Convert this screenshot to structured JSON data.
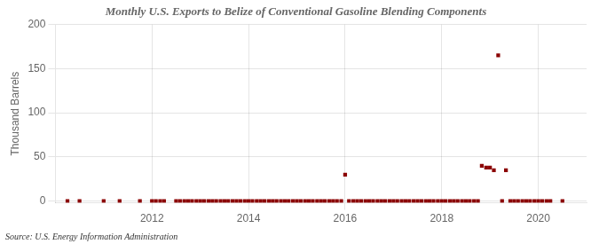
{
  "chart_data": {
    "type": "scatter",
    "title": "Monthly U.S. Exports to Belize of Conventional Gasoline Blending Components",
    "ylabel": "Thousand Barrels",
    "annotations": [
      "Source: U.S. Energy Information Administration"
    ],
    "x": [
      2010.25,
      2010.5,
      2011.0,
      2011.33,
      2011.75,
      2012.0,
      2012.08,
      2012.17,
      2012.25,
      2012.5,
      2012.58,
      2012.67,
      2012.75,
      2012.83,
      2012.92,
      2013.0,
      2013.08,
      2013.17,
      2013.25,
      2013.33,
      2013.42,
      2013.5,
      2013.58,
      2013.67,
      2013.75,
      2013.83,
      2013.92,
      2014.0,
      2014.08,
      2014.17,
      2014.25,
      2014.33,
      2014.42,
      2014.5,
      2014.58,
      2014.67,
      2014.75,
      2014.83,
      2014.92,
      2015.0,
      2015.08,
      2015.17,
      2015.25,
      2015.33,
      2015.42,
      2015.5,
      2015.58,
      2015.67,
      2015.75,
      2015.83,
      2015.92,
      2016.0,
      2016.08,
      2016.17,
      2016.25,
      2016.33,
      2016.42,
      2016.5,
      2016.58,
      2016.67,
      2016.75,
      2016.83,
      2016.92,
      2017.0,
      2017.08,
      2017.17,
      2017.25,
      2017.33,
      2017.42,
      2017.5,
      2017.58,
      2017.67,
      2017.75,
      2017.83,
      2017.92,
      2018.0,
      2018.08,
      2018.17,
      2018.25,
      2018.33,
      2018.42,
      2018.5,
      2018.58,
      2018.67,
      2018.75,
      2018.83,
      2018.92,
      2019.0,
      2019.08,
      2019.17,
      2019.25,
      2019.33,
      2019.42,
      2019.5,
      2019.58,
      2019.67,
      2019.75,
      2019.83,
      2019.92,
      2020.0,
      2020.08,
      2020.17,
      2020.25,
      2020.5
    ],
    "values": [
      0,
      0,
      0,
      0,
      0,
      0,
      0,
      0,
      0,
      0,
      0,
      0,
      0,
      0,
      0,
      0,
      0,
      0,
      0,
      0,
      0,
      0,
      0,
      0,
      0,
      0,
      0,
      0,
      0,
      0,
      0,
      0,
      0,
      0,
      0,
      0,
      0,
      0,
      0,
      0,
      0,
      0,
      0,
      0,
      0,
      0,
      0,
      0,
      0,
      0,
      0,
      30,
      0,
      0,
      0,
      0,
      0,
      0,
      0,
      0,
      0,
      0,
      0,
      0,
      0,
      0,
      0,
      0,
      0,
      0,
      0,
      0,
      0,
      0,
      0,
      0,
      0,
      0,
      0,
      0,
      0,
      0,
      0,
      0,
      0,
      40,
      38,
      38,
      35,
      165,
      0,
      35,
      0,
      0,
      0,
      0,
      0,
      0,
      0,
      0,
      0,
      0,
      0,
      0
    ],
    "color": "#8b0000",
    "marker": "square",
    "xlim": [
      2010.0,
      2021.0
    ],
    "xticks": [
      2012,
      2014,
      2016,
      2018,
      2020
    ],
    "ylim": [
      -2,
      200
    ],
    "yticks": [
      0,
      50,
      100,
      150,
      200
    ],
    "grid": true
  }
}
